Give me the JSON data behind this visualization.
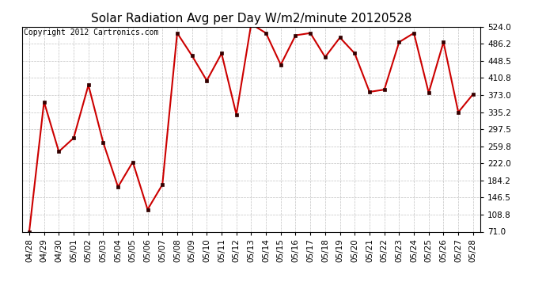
{
  "title": "Solar Radiation Avg per Day W/m2/minute 20120528",
  "copyright_text": "Copyright 2012 Cartronics.com",
  "dates": [
    "04/28",
    "04/29",
    "04/30",
    "05/01",
    "05/02",
    "05/03",
    "05/04",
    "05/05",
    "05/06",
    "05/07",
    "05/08",
    "05/09",
    "05/10",
    "05/11",
    "05/12",
    "05/13",
    "05/14",
    "05/15",
    "05/16",
    "05/17",
    "05/18",
    "05/19",
    "05/20",
    "05/21",
    "05/22",
    "05/23",
    "05/24",
    "05/25",
    "05/26",
    "05/27",
    "05/28"
  ],
  "values": [
    71,
    358,
    248,
    278,
    395,
    268,
    170,
    225,
    120,
    175,
    510,
    460,
    405,
    465,
    330,
    530,
    510,
    440,
    505,
    510,
    457,
    500,
    465,
    380,
    385,
    490,
    510,
    378,
    490,
    335,
    375
  ],
  "line_color": "#cc0000",
  "marker_color": "#330000",
  "background_color": "#ffffff",
  "grid_color": "#bbbbbb",
  "ylim": [
    71.0,
    524.0
  ],
  "yticks": [
    71.0,
    108.8,
    146.5,
    184.2,
    222.0,
    259.8,
    297.5,
    335.2,
    373.0,
    410.8,
    448.5,
    486.2,
    524.0
  ],
  "title_fontsize": 11,
  "copyright_fontsize": 7,
  "tick_fontsize": 7.5,
  "right_yaxis": true
}
